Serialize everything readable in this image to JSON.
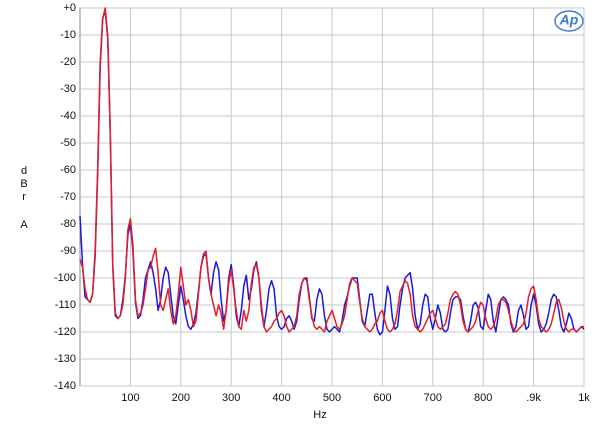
{
  "chart_data": {
    "type": "line",
    "xlabel": "Hz",
    "ylabel": "dBr",
    "ylabel_unit": "A",
    "logo": "Ap",
    "xlim": [
      0,
      1000
    ],
    "ylim": [
      -140,
      0
    ],
    "xticks": [
      100,
      200,
      300,
      400,
      500,
      600,
      700,
      800,
      {
        "value": 900,
        "label": ".9k"
      },
      {
        "value": 1000,
        "label": "1k"
      }
    ],
    "yticks": [
      {
        "value": 0,
        "label": "+0"
      },
      -10,
      -20,
      -30,
      -40,
      -50,
      -60,
      -70,
      -80,
      -90,
      -100,
      -110,
      -120,
      -130,
      -140
    ],
    "grid": true,
    "x": [
      0,
      5,
      10,
      15,
      20,
      25,
      30,
      35,
      40,
      45,
      50,
      55,
      60,
      65,
      70,
      75,
      80,
      85,
      90,
      95,
      100,
      105,
      110,
      115,
      120,
      125,
      130,
      135,
      140,
      145,
      150,
      155,
      160,
      165,
      170,
      175,
      180,
      185,
      190,
      195,
      200,
      205,
      210,
      215,
      220,
      225,
      230,
      235,
      240,
      245,
      250,
      255,
      260,
      265,
      270,
      275,
      280,
      285,
      290,
      295,
      300,
      305,
      310,
      315,
      320,
      325,
      330,
      335,
      340,
      345,
      350,
      355,
      360,
      365,
      370,
      375,
      380,
      385,
      390,
      395,
      400,
      405,
      410,
      415,
      420,
      425,
      430,
      435,
      440,
      445,
      450,
      455,
      460,
      465,
      470,
      475,
      480,
      485,
      490,
      495,
      500,
      505,
      510,
      515,
      520,
      525,
      530,
      535,
      540,
      545,
      550,
      555,
      560,
      565,
      570,
      575,
      580,
      585,
      590,
      595,
      600,
      605,
      610,
      615,
      620,
      625,
      630,
      635,
      640,
      645,
      650,
      655,
      660,
      665,
      670,
      675,
      680,
      685,
      690,
      695,
      700,
      705,
      710,
      715,
      720,
      725,
      730,
      735,
      740,
      745,
      750,
      755,
      760,
      765,
      770,
      775,
      780,
      785,
      790,
      795,
      800,
      805,
      810,
      815,
      820,
      825,
      830,
      835,
      840,
      845,
      850,
      855,
      860,
      865,
      870,
      875,
      880,
      885,
      890,
      895,
      900,
      905,
      910,
      915,
      920,
      925,
      930,
      935,
      940,
      945,
      950,
      955,
      960,
      965,
      970,
      975,
      980,
      985,
      990,
      995,
      1000
    ],
    "series": [
      {
        "color": "#1a1ad6",
        "values": [
          -77,
          -95,
          -107,
          -108,
          -109,
          -106,
          -92,
          -62,
          -22,
          -4,
          -1,
          -11,
          -46,
          -96,
          -114,
          -115,
          -114,
          -108,
          -99,
          -84,
          -80,
          -90,
          -109,
          -115,
          -114,
          -108,
          -100,
          -97,
          -94,
          -98,
          -104,
          -112,
          -108,
          -100,
          -96,
          -98,
          -106,
          -114,
          -117,
          -110,
          -103,
          -108,
          -114,
          -118,
          -119,
          -117,
          -113,
          -105,
          -96,
          -92,
          -91,
          -100,
          -106,
          -98,
          -94,
          -97,
          -108,
          -116,
          -112,
          -100,
          -95,
          -103,
          -114,
          -118,
          -112,
          -103,
          -99,
          -108,
          -104,
          -97,
          -94,
          -100,
          -112,
          -118,
          -112,
          -104,
          -101,
          -104,
          -114,
          -118,
          -119,
          -118,
          -115,
          -114,
          -116,
          -119,
          -116,
          -108,
          -102,
          -100,
          -100,
          -107,
          -115,
          -116,
          -108,
          -104,
          -106,
          -114,
          -119,
          -120,
          -119,
          -118,
          -119,
          -120,
          -116,
          -110,
          -107,
          -103,
          -100,
          -100,
          -100,
          -108,
          -116,
          -118,
          -112,
          -106,
          -106,
          -113,
          -119,
          -121,
          -120,
          -112,
          -103,
          -106,
          -115,
          -119,
          -118,
          -110,
          -104,
          -100,
          -99,
          -98,
          -104,
          -114,
          -119,
          -117,
          -110,
          -106,
          -107,
          -115,
          -119,
          -115,
          -110,
          -113,
          -119,
          -120,
          -119,
          -113,
          -108,
          -107,
          -107,
          -108,
          -114,
          -119,
          -120,
          -116,
          -110,
          -109,
          -111,
          -118,
          -119,
          -112,
          -106,
          -108,
          -116,
          -120,
          -114,
          -108,
          -107,
          -108,
          -110,
          -117,
          -120,
          -118,
          -112,
          -110,
          -114,
          -119,
          -118,
          -110,
          -106,
          -110,
          -117,
          -120,
          -119,
          -117,
          -113,
          -108,
          -106,
          -107,
          -112,
          -118,
          -120,
          -117,
          -113,
          -115,
          -119,
          -120,
          -119,
          -118,
          -119
        ]
      },
      {
        "color": "#e41e26",
        "values": [
          -93,
          -96,
          -104,
          -108,
          -109,
          -106,
          -90,
          -60,
          -20,
          -4,
          0,
          -10,
          -45,
          -95,
          -113,
          -115,
          -114,
          -110,
          -100,
          -82,
          -78,
          -88,
          -108,
          -114,
          -113,
          -110,
          -104,
          -97,
          -96,
          -92,
          -89,
          -98,
          -110,
          -112,
          -108,
          -104,
          -112,
          -117,
          -114,
          -106,
          -96,
          -103,
          -110,
          -108,
          -112,
          -118,
          -116,
          -106,
          -96,
          -91,
          -90,
          -100,
          -106,
          -110,
          -114,
          -110,
          -113,
          -119,
          -112,
          -102,
          -97,
          -104,
          -112,
          -118,
          -119,
          -112,
          -116,
          -112,
          -102,
          -96,
          -95,
          -100,
          -110,
          -118,
          -120,
          -119,
          -118,
          -116,
          -115,
          -113,
          -112,
          -114,
          -118,
          -120,
          -119,
          -118,
          -114,
          -106,
          -102,
          -100,
          -101,
          -108,
          -114,
          -118,
          -119,
          -118,
          -119,
          -120,
          -116,
          -114,
          -112,
          -115,
          -118,
          -119,
          -117,
          -114,
          -108,
          -102,
          -100,
          -101,
          -102,
          -109,
          -115,
          -118,
          -119,
          -120,
          -119,
          -117,
          -116,
          -113,
          -112,
          -116,
          -119,
          -120,
          -119,
          -117,
          -112,
          -105,
          -103,
          -101,
          -102,
          -106,
          -114,
          -118,
          -119,
          -120,
          -119,
          -117,
          -115,
          -113,
          -112,
          -115,
          -118,
          -119,
          -118,
          -117,
          -113,
          -108,
          -106,
          -105,
          -106,
          -110,
          -116,
          -119,
          -120,
          -119,
          -118,
          -116,
          -112,
          -109,
          -110,
          -115,
          -118,
          -119,
          -118,
          -115,
          -110,
          -108,
          -108,
          -109,
          -112,
          -116,
          -119,
          -120,
          -119,
          -118,
          -117,
          -113,
          -107,
          -104,
          -103,
          -108,
          -115,
          -118,
          -119,
          -120,
          -119,
          -117,
          -113,
          -109,
          -108,
          -111,
          -116,
          -119,
          -120,
          -119,
          -119,
          -120,
          -119,
          -118,
          -118
        ]
      }
    ]
  }
}
